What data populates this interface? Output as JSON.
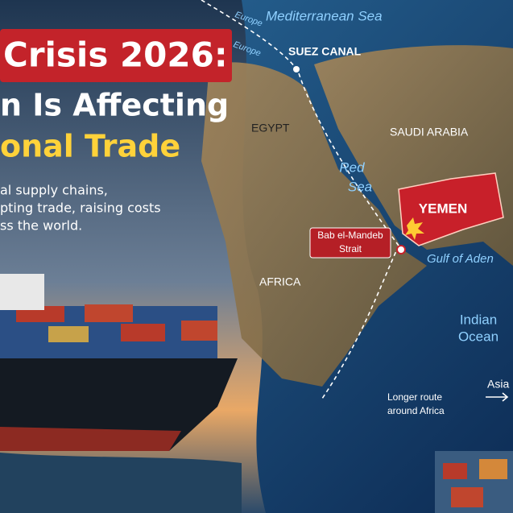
{
  "header": {
    "title_lines": [
      "Crisis 2026:",
      "n Is Affecting",
      "onal Trade"
    ],
    "subtitle_lines": [
      "al supply chains,",
      "pting trade, raising costs",
      "ss the world."
    ]
  },
  "map": {
    "labels": {
      "sea_north": "Mediterranean Sea",
      "europe_1": "Europe",
      "europe_2": "Europe",
      "canal": "SUEZ CANAL",
      "egypt": "EGYPT",
      "saudi": "SAUDI ARABIA",
      "red_sea": [
        "Red",
        "Sea"
      ],
      "yemen": "YEMEN",
      "strait": [
        "Bab el-Mandeb",
        "Strait"
      ],
      "gulf": "Gulf of Aden",
      "africa": "AFRICA",
      "ocean": [
        "Indian",
        "Ocean"
      ],
      "asia": "Asia",
      "route": [
        "Longer route",
        "around Africa"
      ]
    }
  }
}
